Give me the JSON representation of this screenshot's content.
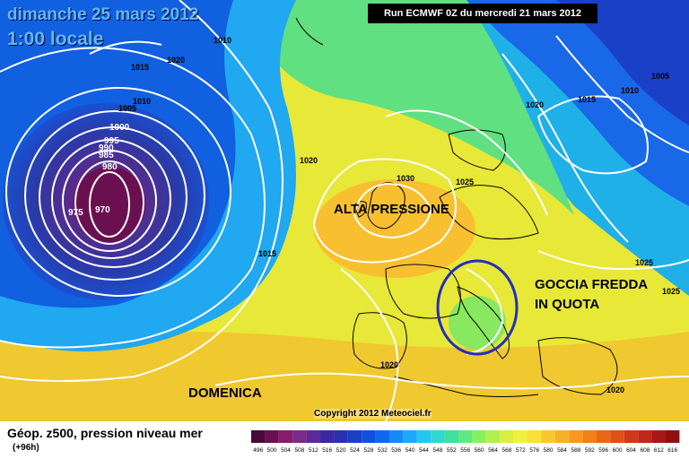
{
  "header": {
    "date": "dimanche 25 mars 2012",
    "time": "1:00 locale",
    "run": "Run ECMWF 0Z du mercredi 21 mars 2012"
  },
  "annotations": {
    "high": "ALTA PRESSIONE",
    "cold_drop_1": "GOCCIA FREDDA",
    "cold_drop_2": "IN QUOTA",
    "day": "DOMENICA"
  },
  "copyright": "Copyright 2012 Meteociel.fr",
  "legend": {
    "title": "Géop. z500, pression niveau mer",
    "subtitle": "(+96h)",
    "scale": [
      "496",
      "500",
      "504",
      "508",
      "512",
      "516",
      "520",
      "524",
      "528",
      "532",
      "536",
      "540",
      "544",
      "548",
      "552",
      "556",
      "560",
      "564",
      "568",
      "572",
      "576",
      "580",
      "584",
      "588",
      "592",
      "596",
      "600",
      "604",
      "608",
      "612",
      "616"
    ],
    "colors": [
      "#4a0a3a",
      "#6a1050",
      "#8a1a6a",
      "#7a2a8a",
      "#5a2a9a",
      "#3a2aa0",
      "#2a30b0",
      "#1a40c8",
      "#1050e0",
      "#1068f0",
      "#1888f8",
      "#20a8f8",
      "#20c8f0",
      "#30d8d0",
      "#40e0a0",
      "#60e880",
      "#88f060",
      "#b0f050",
      "#d8f040",
      "#f0f040",
      "#f8e038",
      "#f8c830",
      "#f8b028",
      "#f89820",
      "#f08018",
      "#e86818",
      "#e05018",
      "#d03818",
      "#c02818",
      "#a81818",
      "#901010"
    ]
  },
  "isobar_labels": [
    "1010",
    "1020",
    "1015",
    "1010",
    "1005",
    "1000",
    "995",
    "990",
    "985",
    "980",
    "975",
    "970",
    "1020",
    "1030",
    "1025",
    "1015",
    "1020",
    "1015",
    "1010",
    "1005",
    "1025",
    "1025",
    "1020",
    "1020"
  ]
}
